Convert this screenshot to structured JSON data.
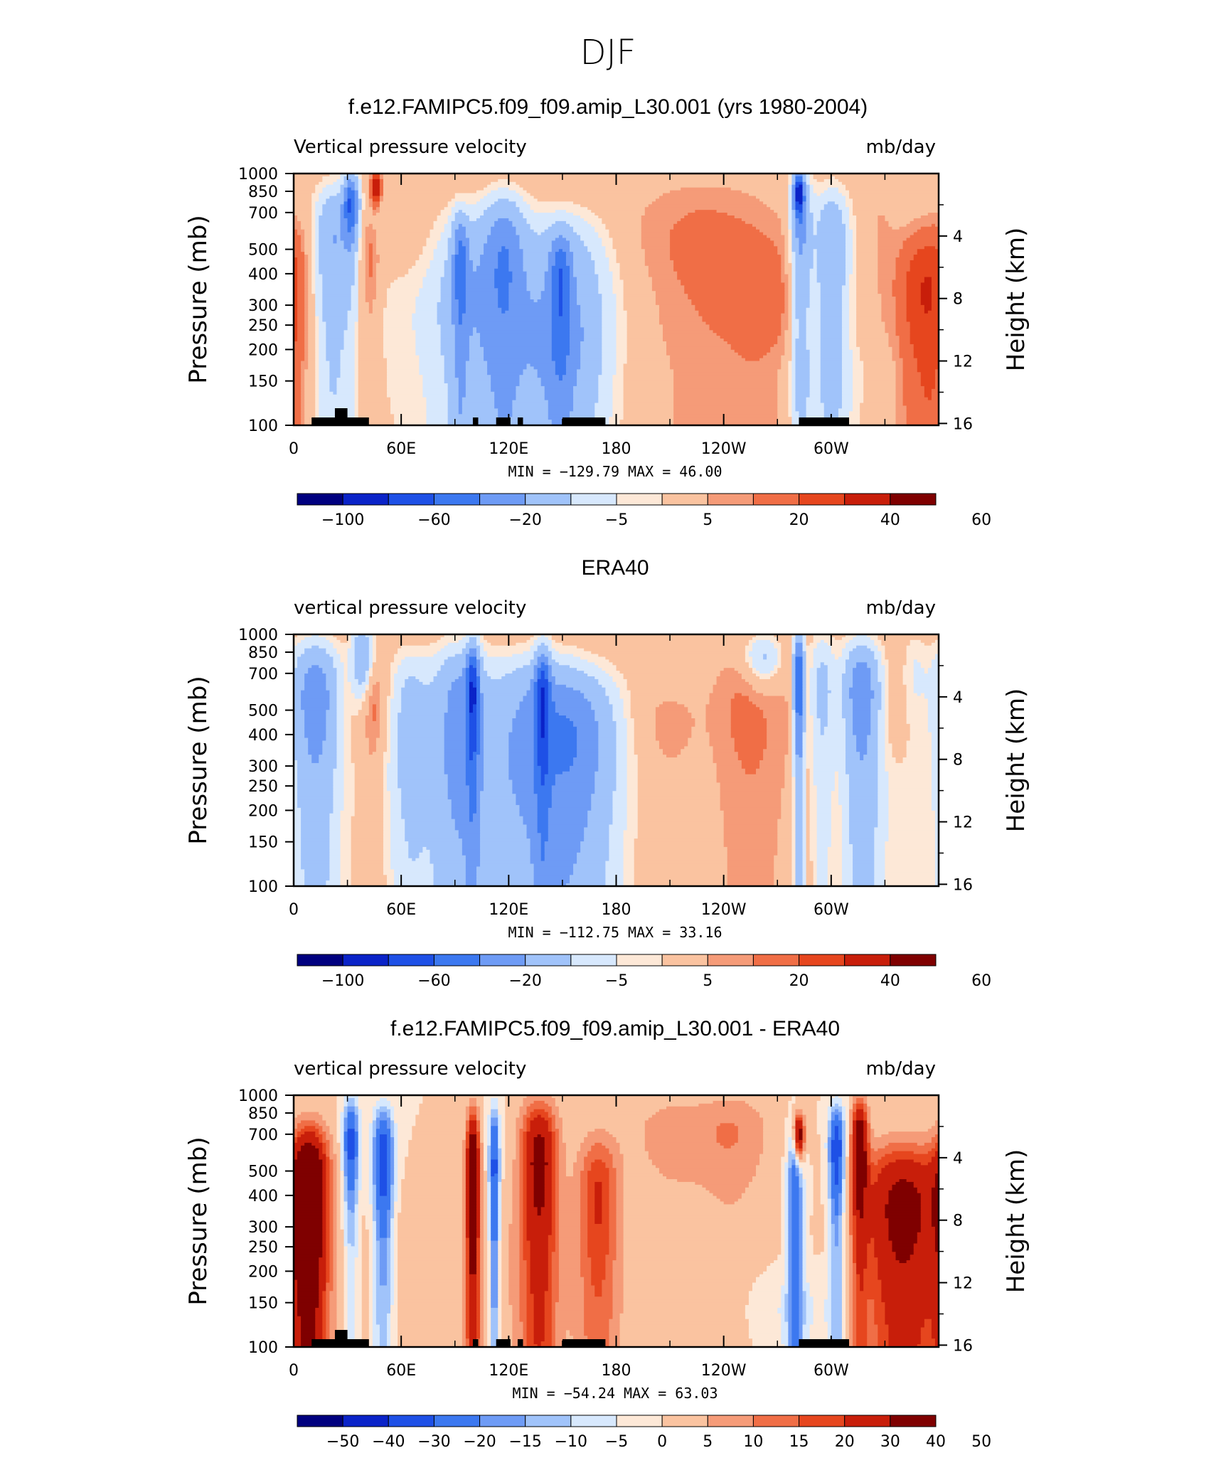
{
  "figure_title": "DJF",
  "panels": [
    {
      "title": "f.e12.FAMIPC5.f09_f09.amip_L30.001 (yrs 1980-2004)",
      "left_label": "Vertical pressure velocity",
      "right_label": "mb/day",
      "minmax": "MIN =  −129.79   MAX =   46.00",
      "colorbar_labels": [
        "−100",
        "−60",
        "−20",
        "−5",
        "5",
        "20",
        "40",
        "60"
      ]
    },
    {
      "title": "ERA40",
      "left_label": "vertical pressure velocity",
      "right_label": "mb/day",
      "minmax": "MIN =  −112.75   MAX =   33.16",
      "colorbar_labels": [
        "−100",
        "−60",
        "−20",
        "−5",
        "5",
        "20",
        "40",
        "60"
      ]
    },
    {
      "title": "f.e12.FAMIPC5.f09_f09.amip_L30.001 - ERA40",
      "left_label": "vertical pressure velocity",
      "right_label": "mb/day",
      "minmax": "MIN =  −54.24   MAX =   63.03",
      "colorbar_labels": [
        "−50",
        "−40",
        "−30",
        "−20",
        "−15",
        "−10",
        "−5",
        "0",
        "5",
        "10",
        "15",
        "20",
        "30",
        "40",
        "50"
      ]
    }
  ],
  "axes": {
    "ylabel": "Pressure (mb)",
    "y2label": "Height (km)",
    "y_ticks": [
      "100",
      "150",
      "200",
      "250",
      "300",
      "400",
      "500",
      "700",
      "850",
      "1000"
    ],
    "y2_ticks": [
      "16",
      "12",
      "8",
      "4"
    ],
    "x_ticks": [
      "0",
      "60E",
      "120E",
      "180",
      "120W",
      "60W"
    ]
  },
  "colors": {
    "palette": [
      "#00007f",
      "#0a23c8",
      "#1e50e6",
      "#3c78f0",
      "#6e9bf5",
      "#a0c3fa",
      "#d7e8fd",
      "#fde8d7",
      "#fac3a0",
      "#f59b78",
      "#f06e46",
      "#e6461e",
      "#c81e0a",
      "#7f0000"
    ],
    "background_field": "#d7e8fd",
    "terrain": "#000000"
  },
  "chart_data": [
    {
      "type": "heatmap",
      "title": "f.e12.FAMIPC5.f09_f09.amip_L30.001 (yrs 1980-2004)",
      "xlabel": "",
      "ylabel": "Pressure (mb)",
      "y2label": "Height (km)",
      "xlim": [
        0,
        360
      ],
      "ylim": [
        1000,
        100
      ],
      "y_scale": "log-pressure",
      "units": "mb/day",
      "min": -129.79,
      "max": 46.0,
      "levels": [
        -120,
        -100,
        -80,
        -60,
        -40,
        -20,
        -10,
        -5,
        5,
        10,
        20,
        30,
        40,
        50,
        60
      ],
      "features": [
        {
          "lon": 0,
          "p": 350,
          "sx": 6,
          "sp": 400,
          "v": 10
        },
        {
          "lon": 22,
          "p": 550,
          "sx": 7,
          "sp": 300,
          "v": -40
        },
        {
          "lon": 32,
          "p": 760,
          "sx": 3,
          "sp": 150,
          "v": -75
        },
        {
          "lon": 43,
          "p": 450,
          "sx": 4,
          "sp": 220,
          "v": 15
        },
        {
          "lon": 46,
          "p": 880,
          "sx": 2,
          "sp": 60,
          "v": 45
        },
        {
          "lon": 48,
          "p": 650,
          "sx": 5,
          "sp": 120,
          "v": -6
        },
        {
          "lon": 100,
          "p": 400,
          "sx": 14,
          "sp": 350,
          "v": -28
        },
        {
          "lon": 93,
          "p": 450,
          "sx": 3,
          "sp": 200,
          "v": -45
        },
        {
          "lon": 118,
          "p": 500,
          "sx": 8,
          "sp": 300,
          "v": -42
        },
        {
          "lon": 150,
          "p": 380,
          "sx": 18,
          "sp": 330,
          "v": -32
        },
        {
          "lon": 149,
          "p": 400,
          "sx": 4,
          "sp": 150,
          "v": -45
        },
        {
          "lon": 108,
          "p": 250,
          "sx": 50,
          "sp": 200,
          "v": -12
        },
        {
          "lon": 148,
          "p": 200,
          "sx": 15,
          "sp": 100,
          "v": -18
        },
        {
          "lon": 230,
          "p": 500,
          "sx": 30,
          "sp": 450,
          "v": 13
        },
        {
          "lon": 263,
          "p": 300,
          "sx": 14,
          "sp": 300,
          "v": 10
        },
        {
          "lon": 283,
          "p": 600,
          "sx": 4,
          "sp": 400,
          "v": -45
        },
        {
          "lon": 282,
          "p": 840,
          "sx": 2,
          "sp": 80,
          "v": -95
        },
        {
          "lon": 300,
          "p": 500,
          "sx": 7,
          "sp": 350,
          "v": -38
        },
        {
          "lon": 290,
          "p": 150,
          "sx": 40,
          "sp": 60,
          "v": -6
        },
        {
          "lon": 350,
          "p": 330,
          "sx": 10,
          "sp": 280,
          "v": 28
        },
        {
          "lon": 328,
          "p": 600,
          "sx": 5,
          "sp": 300,
          "v": 5
        }
      ]
    },
    {
      "type": "heatmap",
      "title": "ERA40",
      "xlabel": "",
      "ylabel": "Pressure (mb)",
      "y2label": "Height (km)",
      "xlim": [
        0,
        360
      ],
      "ylim": [
        1000,
        100
      ],
      "y_scale": "log-pressure",
      "units": "mb/day",
      "min": -112.75,
      "max": 33.16,
      "levels": [
        -120,
        -100,
        -80,
        -60,
        -40,
        -20,
        -10,
        -5,
        5,
        10,
        20,
        30,
        40,
        50,
        60
      ],
      "features": [
        {
          "lon": 12,
          "p": 560,
          "sx": 9,
          "sp": 330,
          "v": -55
        },
        {
          "lon": 38,
          "p": 800,
          "sx": 4,
          "sp": 200,
          "v": -40
        },
        {
          "lon": 42,
          "p": 500,
          "sx": 6,
          "sp": 220,
          "v": 18
        },
        {
          "lon": 65,
          "p": 500,
          "sx": 8,
          "sp": 330,
          "v": -25
        },
        {
          "lon": 92,
          "p": 500,
          "sx": 10,
          "sp": 380,
          "v": -45
        },
        {
          "lon": 100,
          "p": 620,
          "sx": 2.5,
          "sp": 250,
          "v": -70
        },
        {
          "lon": 135,
          "p": 450,
          "sx": 20,
          "sp": 370,
          "v": -42
        },
        {
          "lon": 139,
          "p": 600,
          "sx": 3,
          "sp": 250,
          "v": -60
        },
        {
          "lon": 160,
          "p": 400,
          "sx": 15,
          "sp": 300,
          "v": -35
        },
        {
          "lon": 110,
          "p": 250,
          "sx": 50,
          "sp": 200,
          "v": -12
        },
        {
          "lon": 208,
          "p": 420,
          "sx": 12,
          "sp": 150,
          "v": 8
        },
        {
          "lon": 255,
          "p": 480,
          "sx": 16,
          "sp": 360,
          "v": 13
        },
        {
          "lon": 262,
          "p": 800,
          "sx": 7,
          "sp": 100,
          "v": -25
        },
        {
          "lon": 282,
          "p": 650,
          "sx": 2,
          "sp": 300,
          "v": -85
        },
        {
          "lon": 295,
          "p": 600,
          "sx": 5,
          "sp": 350,
          "v": -25
        },
        {
          "lon": 317,
          "p": 580,
          "sx": 7,
          "sp": 300,
          "v": -58
        },
        {
          "lon": 347,
          "p": 700,
          "sx": 5,
          "sp": 250,
          "v": -10
        },
        {
          "lon": 330,
          "p": 200,
          "sx": 15,
          "sp": 150,
          "v": -7
        }
      ]
    },
    {
      "type": "heatmap",
      "title": "f.e12.FAMIPC5.f09_f09.amip_L30.001 - ERA40",
      "xlabel": "",
      "ylabel": "Pressure (mb)",
      "y2label": "Height (km)",
      "xlim": [
        0,
        360
      ],
      "ylim": [
        1000,
        100
      ],
      "y_scale": "log-pressure",
      "units": "mb/day",
      "min": -54.24,
      "max": 63.03,
      "levels": [
        -50,
        -40,
        -30,
        -20,
        -15,
        -10,
        -5,
        0,
        5,
        10,
        15,
        20,
        30,
        40,
        50
      ],
      "features": [
        {
          "lon": 9,
          "p": 420,
          "sx": 7,
          "sp": 330,
          "v": 48
        },
        {
          "lon": 32,
          "p": 650,
          "sx": 3,
          "sp": 250,
          "v": -35
        },
        {
          "lon": 50,
          "p": 550,
          "sx": 4,
          "sp": 300,
          "v": -38
        },
        {
          "lon": 100,
          "p": 500,
          "sx": 2.5,
          "sp": 350,
          "v": 45
        },
        {
          "lon": 112,
          "p": 500,
          "sx": 2,
          "sp": 400,
          "v": -35
        },
        {
          "lon": 137,
          "p": 550,
          "sx": 7,
          "sp": 380,
          "v": 35
        },
        {
          "lon": 170,
          "p": 400,
          "sx": 8,
          "sp": 300,
          "v": 20
        },
        {
          "lon": 100,
          "p": 200,
          "sx": 60,
          "sp": 300,
          "v": 4
        },
        {
          "lon": 210,
          "p": 700,
          "sx": 15,
          "sp": 200,
          "v": 8
        },
        {
          "lon": 245,
          "p": 700,
          "sx": 15,
          "sp": 250,
          "v": 10
        },
        {
          "lon": 280,
          "p": 400,
          "sx": 3,
          "sp": 350,
          "v": -30
        },
        {
          "lon": 282,
          "p": 690,
          "sx": 2,
          "sp": 80,
          "v": 45
        },
        {
          "lon": 303,
          "p": 600,
          "sx": 3,
          "sp": 250,
          "v": -40
        },
        {
          "lon": 316,
          "p": 650,
          "sx": 3,
          "sp": 250,
          "v": 40
        },
        {
          "lon": 340,
          "p": 350,
          "sx": 16,
          "sp": 300,
          "v": 35
        },
        {
          "lon": 280,
          "p": 140,
          "sx": 20,
          "sp": 50,
          "v": -6
        }
      ]
    }
  ]
}
